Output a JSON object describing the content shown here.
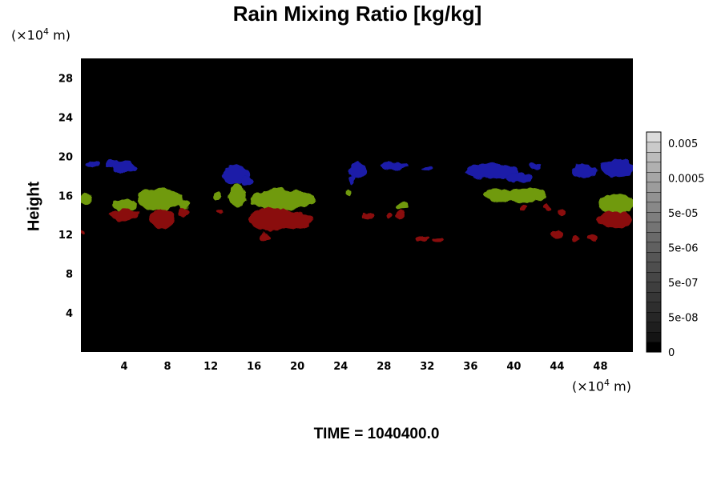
{
  "chart_data": {
    "type": "heatmap",
    "title": "Rain Mixing Ratio [kg/kg]",
    "ylabel": "Height",
    "x_unit": {
      "prefix": "(×10",
      "exp": "4",
      "suffix": " m)"
    },
    "y_unit": {
      "prefix": "(×10",
      "exp": "4",
      "suffix": " m)"
    },
    "xlim": [
      0,
      51
    ],
    "ylim": [
      0,
      30
    ],
    "x_ticks": [
      4,
      8,
      12,
      16,
      20,
      24,
      28,
      32,
      36,
      40,
      44,
      48
    ],
    "y_ticks": [
      4,
      8,
      12,
      16,
      20,
      24,
      28
    ],
    "background_color": "#000000",
    "colorbar": {
      "tick_labels": [
        "0.005",
        "0.0005",
        "5e-05",
        "5e-06",
        "5e-07",
        "5e-08",
        "0"
      ],
      "colors": [
        "#000000",
        "#141414",
        "#1e1e1e",
        "#262626",
        "#2e2e2e",
        "#363636",
        "#3e3e3e",
        "#464646",
        "#4e4e4e",
        "#565656",
        "#606060",
        "#6a6a6a",
        "#747474",
        "#7e7e7e",
        "#888888",
        "#929292",
        "#9c9c9c",
        "#a6a6a6",
        "#b0b0b0",
        "#bcbcbc",
        "#cacaca",
        "#dcdcdc"
      ]
    },
    "regions": [
      {
        "color": "#1a1fa8",
        "cx": 1.0,
        "cy": 19.2,
        "rx": 0.6,
        "ry": 0.3
      },
      {
        "color": "#1a1fa8",
        "cx": 3.0,
        "cy": 19.2,
        "rx": 0.8,
        "ry": 0.4
      },
      {
        "color": "#1a1fa8",
        "cx": 4.0,
        "cy": 18.9,
        "rx": 1.2,
        "ry": 0.6
      },
      {
        "color": "#1a1fa8",
        "cx": 14.3,
        "cy": 18.1,
        "rx": 1.3,
        "ry": 0.9
      },
      {
        "color": "#1a1fa8",
        "cx": 15.5,
        "cy": 17.5,
        "rx": 0.6,
        "ry": 0.4
      },
      {
        "color": "#1a1fa8",
        "cx": 25.6,
        "cy": 18.6,
        "rx": 0.8,
        "ry": 0.8
      },
      {
        "color": "#1a1fa8",
        "cx": 25.1,
        "cy": 17.6,
        "rx": 0.3,
        "ry": 0.5
      },
      {
        "color": "#1a1fa8",
        "cx": 29.0,
        "cy": 19.0,
        "rx": 1.3,
        "ry": 0.4
      },
      {
        "color": "#1a1fa8",
        "cx": 32.0,
        "cy": 18.7,
        "rx": 0.5,
        "ry": 0.3
      },
      {
        "color": "#1a1fa8",
        "cx": 38.0,
        "cy": 18.5,
        "rx": 2.5,
        "ry": 0.8
      },
      {
        "color": "#1a1fa8",
        "cx": 40.5,
        "cy": 17.8,
        "rx": 1.2,
        "ry": 0.5
      },
      {
        "color": "#1a1fa8",
        "cx": 42.0,
        "cy": 19.0,
        "rx": 0.6,
        "ry": 0.3
      },
      {
        "color": "#1a1fa8",
        "cx": 46.5,
        "cy": 18.5,
        "rx": 1.2,
        "ry": 0.7
      },
      {
        "color": "#1a1fa8",
        "cx": 49.5,
        "cy": 18.8,
        "rx": 1.6,
        "ry": 0.9
      },
      {
        "color": "#6f9a10",
        "cx": 0.4,
        "cy": 15.6,
        "rx": 0.5,
        "ry": 0.7
      },
      {
        "color": "#6f9a10",
        "cx": 4.0,
        "cy": 15.0,
        "rx": 1.2,
        "ry": 0.6
      },
      {
        "color": "#6f9a10",
        "cx": 7.3,
        "cy": 15.6,
        "rx": 2.1,
        "ry": 1.1
      },
      {
        "color": "#6f9a10",
        "cx": 9.5,
        "cy": 15.1,
        "rx": 0.5,
        "ry": 0.6
      },
      {
        "color": "#6f9a10",
        "cx": 12.6,
        "cy": 15.9,
        "rx": 0.3,
        "ry": 0.5
      },
      {
        "color": "#6f9a10",
        "cx": 14.5,
        "cy": 16.0,
        "rx": 0.8,
        "ry": 1.2
      },
      {
        "color": "#6f9a10",
        "cx": 18.6,
        "cy": 15.6,
        "rx": 3.0,
        "ry": 1.1
      },
      {
        "color": "#6f9a10",
        "cx": 24.8,
        "cy": 16.3,
        "rx": 0.3,
        "ry": 0.4
      },
      {
        "color": "#6f9a10",
        "cx": 29.7,
        "cy": 14.9,
        "rx": 0.6,
        "ry": 0.3
      },
      {
        "color": "#6f9a10",
        "cx": 38.6,
        "cy": 16.0,
        "rx": 1.4,
        "ry": 0.7
      },
      {
        "color": "#6f9a10",
        "cx": 41.0,
        "cy": 16.0,
        "rx": 2.0,
        "ry": 0.7
      },
      {
        "color": "#6f9a10",
        "cx": 49.5,
        "cy": 15.1,
        "rx": 1.6,
        "ry": 1.1
      },
      {
        "color": "#8a0c0c",
        "cx": 4.0,
        "cy": 14.0,
        "rx": 1.4,
        "ry": 0.6
      },
      {
        "color": "#8a0c0c",
        "cx": 7.5,
        "cy": 13.6,
        "rx": 1.2,
        "ry": 1.0
      },
      {
        "color": "#8a0c0c",
        "cx": 9.5,
        "cy": 14.3,
        "rx": 0.5,
        "ry": 0.4
      },
      {
        "color": "#8a0c0c",
        "cx": 12.8,
        "cy": 14.3,
        "rx": 0.3,
        "ry": 0.2
      },
      {
        "color": "#8a0c0c",
        "cx": 17.7,
        "cy": 13.6,
        "rx": 2.2,
        "ry": 1.2
      },
      {
        "color": "#8a0c0c",
        "cx": 19.8,
        "cy": 13.4,
        "rx": 1.5,
        "ry": 0.9
      },
      {
        "color": "#8a0c0c",
        "cx": 17.0,
        "cy": 11.8,
        "rx": 0.4,
        "ry": 0.5
      },
      {
        "color": "#8a0c0c",
        "cx": 26.5,
        "cy": 13.9,
        "rx": 0.5,
        "ry": 0.4
      },
      {
        "color": "#8a0c0c",
        "cx": 28.5,
        "cy": 13.9,
        "rx": 0.3,
        "ry": 0.3
      },
      {
        "color": "#8a0c0c",
        "cx": 29.5,
        "cy": 14.0,
        "rx": 0.4,
        "ry": 0.5
      },
      {
        "color": "#8a0c0c",
        "cx": 31.5,
        "cy": 11.6,
        "rx": 0.6,
        "ry": 0.3
      },
      {
        "color": "#8a0c0c",
        "cx": 33.0,
        "cy": 11.4,
        "rx": 0.5,
        "ry": 0.25
      },
      {
        "color": "#8a0c0c",
        "cx": 44.0,
        "cy": 12.0,
        "rx": 0.6,
        "ry": 0.4
      },
      {
        "color": "#8a0c0c",
        "cx": 44.5,
        "cy": 14.2,
        "rx": 0.4,
        "ry": 0.3
      },
      {
        "color": "#8a0c0c",
        "cx": 41.0,
        "cy": 14.7,
        "rx": 0.3,
        "ry": 0.3
      },
      {
        "color": "#8a0c0c",
        "cx": 43.0,
        "cy": 14.8,
        "rx": 0.3,
        "ry": 0.3
      },
      {
        "color": "#8a0c0c",
        "cx": 45.7,
        "cy": 11.6,
        "rx": 0.3,
        "ry": 0.3
      },
      {
        "color": "#8a0c0c",
        "cx": 47.3,
        "cy": 11.6,
        "rx": 0.4,
        "ry": 0.3
      },
      {
        "color": "#8a0c0c",
        "cx": 49.3,
        "cy": 13.5,
        "rx": 1.6,
        "ry": 0.9
      },
      {
        "color": "#8a0c0c",
        "cx": 0.1,
        "cy": 12.2,
        "rx": 0.2,
        "ry": 0.3
      }
    ]
  },
  "footer": {
    "time_label": "TIME = 1040400.0"
  }
}
